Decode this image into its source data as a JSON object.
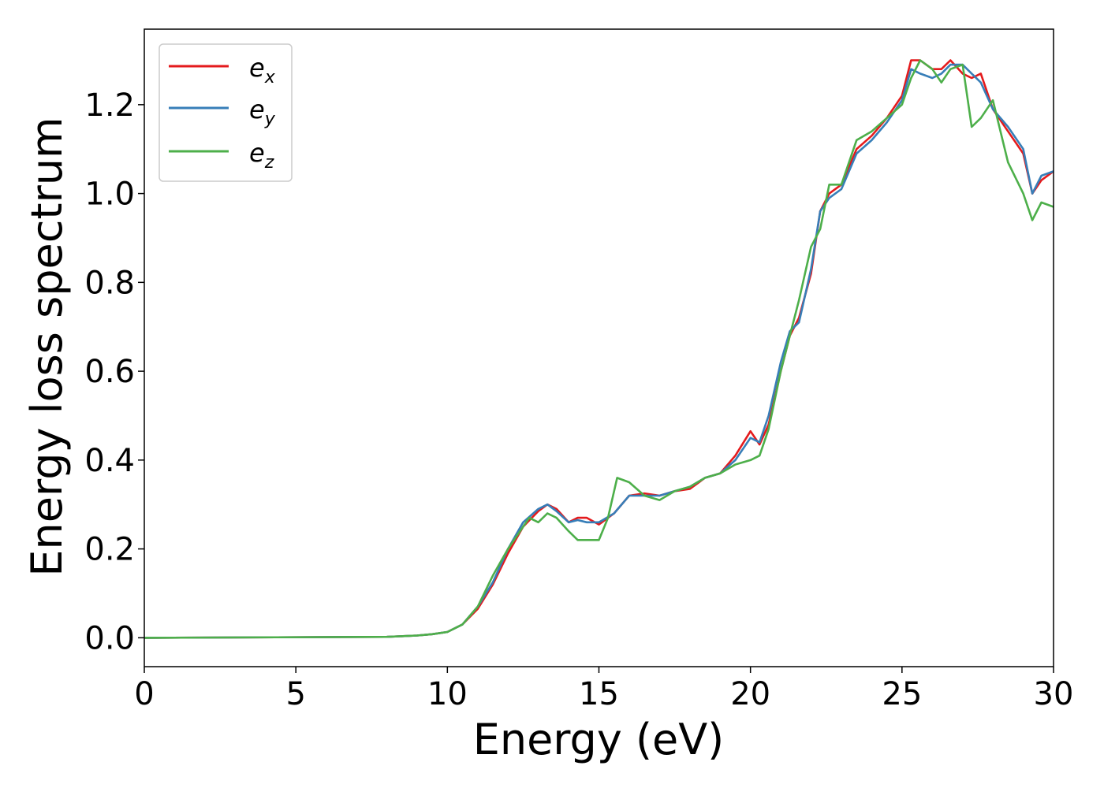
{
  "chart_data": {
    "type": "line",
    "title": "",
    "xlabel": "Energy (eV)",
    "ylabel": "Energy loss spectrum",
    "xlim": [
      0,
      30
    ],
    "ylim": [
      -0.065,
      1.37
    ],
    "xticks": [
      0,
      5,
      10,
      15,
      20,
      25,
      30
    ],
    "yticks": [
      0.0,
      0.2,
      0.4,
      0.6,
      0.8,
      1.0,
      1.2
    ],
    "xtick_labels": [
      "0",
      "5",
      "10",
      "15",
      "20",
      "25",
      "30"
    ],
    "ytick_labels": [
      "0.0",
      "0.2",
      "0.4",
      "0.6",
      "0.8",
      "1.0",
      "1.2"
    ],
    "grid": false,
    "legend_position": "top-left",
    "series": [
      {
        "name": "e_x",
        "legend_base": "e",
        "legend_sub": "x",
        "color": "#e41a1c",
        "x": [
          0,
          8,
          9,
          9.5,
          10,
          10.5,
          11,
          11.5,
          12,
          12.5,
          13,
          13.3,
          13.6,
          14,
          14.3,
          14.6,
          15,
          15.5,
          16,
          16.5,
          17,
          17.5,
          18,
          18.5,
          19,
          19.5,
          20,
          20.3,
          20.6,
          21,
          21.3,
          21.6,
          22,
          22.3,
          22.6,
          23,
          23.5,
          24,
          24.5,
          25,
          25.3,
          25.6,
          26,
          26.3,
          26.6,
          27,
          27.3,
          27.6,
          28,
          28.5,
          29,
          29.3,
          29.6,
          30
        ],
        "y": [
          0.0,
          0.002,
          0.005,
          0.008,
          0.013,
          0.03,
          0.065,
          0.12,
          0.19,
          0.25,
          0.285,
          0.3,
          0.29,
          0.26,
          0.27,
          0.27,
          0.255,
          0.28,
          0.32,
          0.325,
          0.32,
          0.33,
          0.335,
          0.36,
          0.37,
          0.41,
          0.465,
          0.435,
          0.48,
          0.6,
          0.68,
          0.72,
          0.82,
          0.96,
          1.0,
          1.02,
          1.1,
          1.13,
          1.17,
          1.22,
          1.3,
          1.3,
          1.28,
          1.28,
          1.3,
          1.27,
          1.26,
          1.27,
          1.19,
          1.14,
          1.09,
          1.0,
          1.03,
          1.05
        ]
      },
      {
        "name": "e_y",
        "legend_base": "e",
        "legend_sub": "y",
        "color": "#377eb8",
        "x": [
          0,
          8,
          9,
          9.5,
          10,
          10.5,
          11,
          11.5,
          12,
          12.5,
          13,
          13.3,
          13.6,
          14,
          14.3,
          14.6,
          15,
          15.5,
          16,
          16.5,
          17,
          17.5,
          18,
          18.5,
          19,
          19.5,
          20,
          20.3,
          20.6,
          21,
          21.3,
          21.6,
          22,
          22.3,
          22.6,
          23,
          23.5,
          24,
          24.5,
          25,
          25.3,
          25.6,
          26,
          26.3,
          26.6,
          27,
          27.3,
          27.6,
          28,
          28.5,
          29,
          29.3,
          29.6,
          30
        ],
        "y": [
          0.0,
          0.002,
          0.005,
          0.008,
          0.013,
          0.03,
          0.07,
          0.125,
          0.2,
          0.26,
          0.29,
          0.3,
          0.285,
          0.26,
          0.265,
          0.26,
          0.26,
          0.28,
          0.32,
          0.32,
          0.32,
          0.33,
          0.34,
          0.36,
          0.37,
          0.4,
          0.45,
          0.44,
          0.5,
          0.62,
          0.69,
          0.71,
          0.83,
          0.96,
          0.99,
          1.01,
          1.09,
          1.12,
          1.16,
          1.21,
          1.28,
          1.27,
          1.26,
          1.27,
          1.29,
          1.29,
          1.27,
          1.25,
          1.19,
          1.15,
          1.1,
          1.0,
          1.04,
          1.05
        ]
      },
      {
        "name": "e_z",
        "legend_base": "e",
        "legend_sub": "z",
        "color": "#4daf4a",
        "x": [
          0,
          8,
          9,
          9.5,
          10,
          10.5,
          11,
          11.5,
          12,
          12.3,
          12.7,
          13,
          13.3,
          13.6,
          14,
          14.3,
          14.6,
          15,
          15.3,
          15.6,
          16,
          16.5,
          17,
          17.5,
          18,
          18.5,
          19,
          19.5,
          20,
          20.3,
          20.6,
          21,
          21.3,
          21.6,
          22,
          22.3,
          22.6,
          23,
          23.5,
          24,
          24.5,
          25,
          25.3,
          25.6,
          26,
          26.3,
          26.6,
          27,
          27.3,
          27.6,
          28,
          28.5,
          29,
          29.3,
          29.6,
          30
        ],
        "y": [
          0.0,
          0.002,
          0.005,
          0.008,
          0.013,
          0.03,
          0.07,
          0.14,
          0.2,
          0.23,
          0.27,
          0.26,
          0.28,
          0.27,
          0.24,
          0.22,
          0.22,
          0.22,
          0.27,
          0.36,
          0.35,
          0.32,
          0.31,
          0.33,
          0.34,
          0.36,
          0.37,
          0.39,
          0.4,
          0.41,
          0.47,
          0.6,
          0.68,
          0.76,
          0.88,
          0.92,
          1.02,
          1.02,
          1.12,
          1.14,
          1.17,
          1.2,
          1.26,
          1.3,
          1.28,
          1.25,
          1.28,
          1.29,
          1.15,
          1.17,
          1.21,
          1.07,
          1.0,
          0.94,
          0.98,
          0.97
        ]
      }
    ]
  }
}
